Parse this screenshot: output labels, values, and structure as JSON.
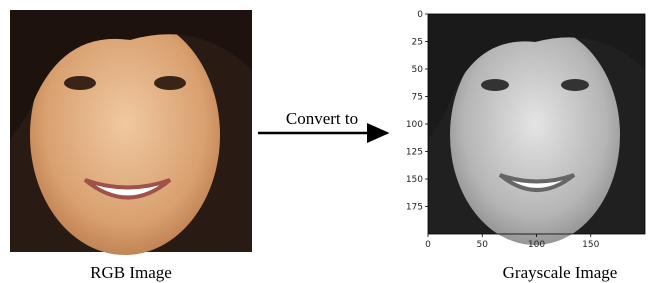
{
  "left_image": {
    "caption": "RGB Image"
  },
  "arrow": {
    "label": "Convert to"
  },
  "right_image": {
    "caption": "Grayscale Image",
    "xlim": [
      0,
      200
    ],
    "ylim": [
      0,
      200
    ],
    "xticks": [
      0,
      50,
      100,
      150
    ],
    "yticks": [
      0,
      25,
      50,
      75,
      100,
      125,
      150,
      175
    ]
  }
}
